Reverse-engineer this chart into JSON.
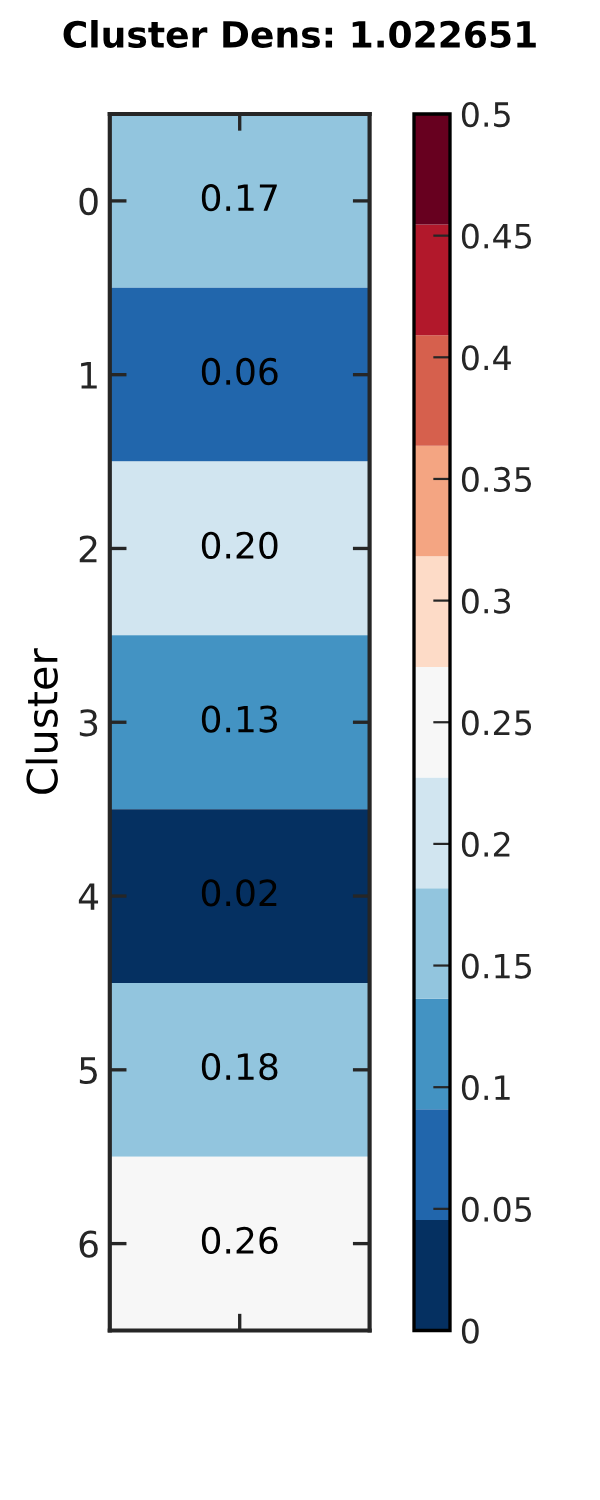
{
  "chart_data": {
    "type": "heatmap",
    "title": "Cluster Dens: 1.022651",
    "ylabel": "Cluster",
    "categories": [
      null
    ],
    "y_categories": [
      "0",
      "1",
      "2",
      "3",
      "4",
      "5",
      "6"
    ],
    "cells": [
      [
        0.17
      ],
      [
        0.06
      ],
      [
        0.2
      ],
      [
        0.13
      ],
      [
        0.02
      ],
      [
        0.18
      ],
      [
        0.26
      ]
    ],
    "cell_labels": [
      [
        "0.17"
      ],
      [
        "0.06"
      ],
      [
        "0.20"
      ],
      [
        "0.13"
      ],
      [
        "0.02"
      ],
      [
        "0.18"
      ],
      [
        "0.26"
      ]
    ],
    "clim": [
      0,
      0.5
    ],
    "cticks": [
      0,
      0.05,
      0.1,
      0.15,
      0.2,
      0.25,
      0.3,
      0.35,
      0.4,
      0.45,
      0.5
    ]
  }
}
